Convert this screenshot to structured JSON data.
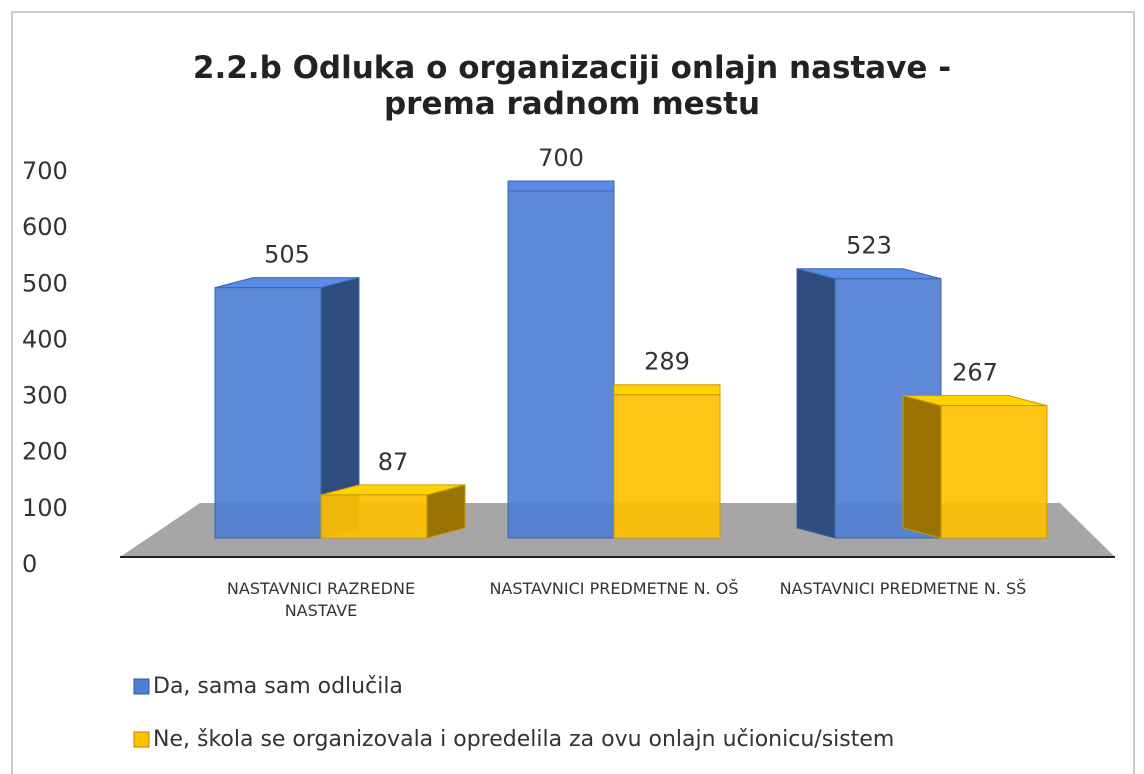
{
  "chart_data": {
    "type": "bar3d",
    "title": "2.2.b Odluka o organizaciji onlajn nastave - prema radnom mestu",
    "categories": [
      "NASTAVNICI RAZREDNE NASTAVE",
      "NASTAVNICI PREDMETNE N. OŠ",
      "NASTAVNICI PREDMETNE N. SŠ"
    ],
    "series": [
      {
        "name": "Da, sama sam odlučila",
        "color": "#4f7fd3",
        "values": [
          505,
          700,
          523
        ]
      },
      {
        "name": "Ne, škola se organizovala i opredelila za ovu onlajn učionicu/sistem",
        "color": "#ffc000",
        "values": [
          87,
          289,
          267
        ]
      }
    ],
    "ylim": [
      0,
      700
    ],
    "yticks": [
      0,
      100,
      200,
      300,
      400,
      500,
      600,
      700
    ],
    "legend": "bottom-left"
  }
}
